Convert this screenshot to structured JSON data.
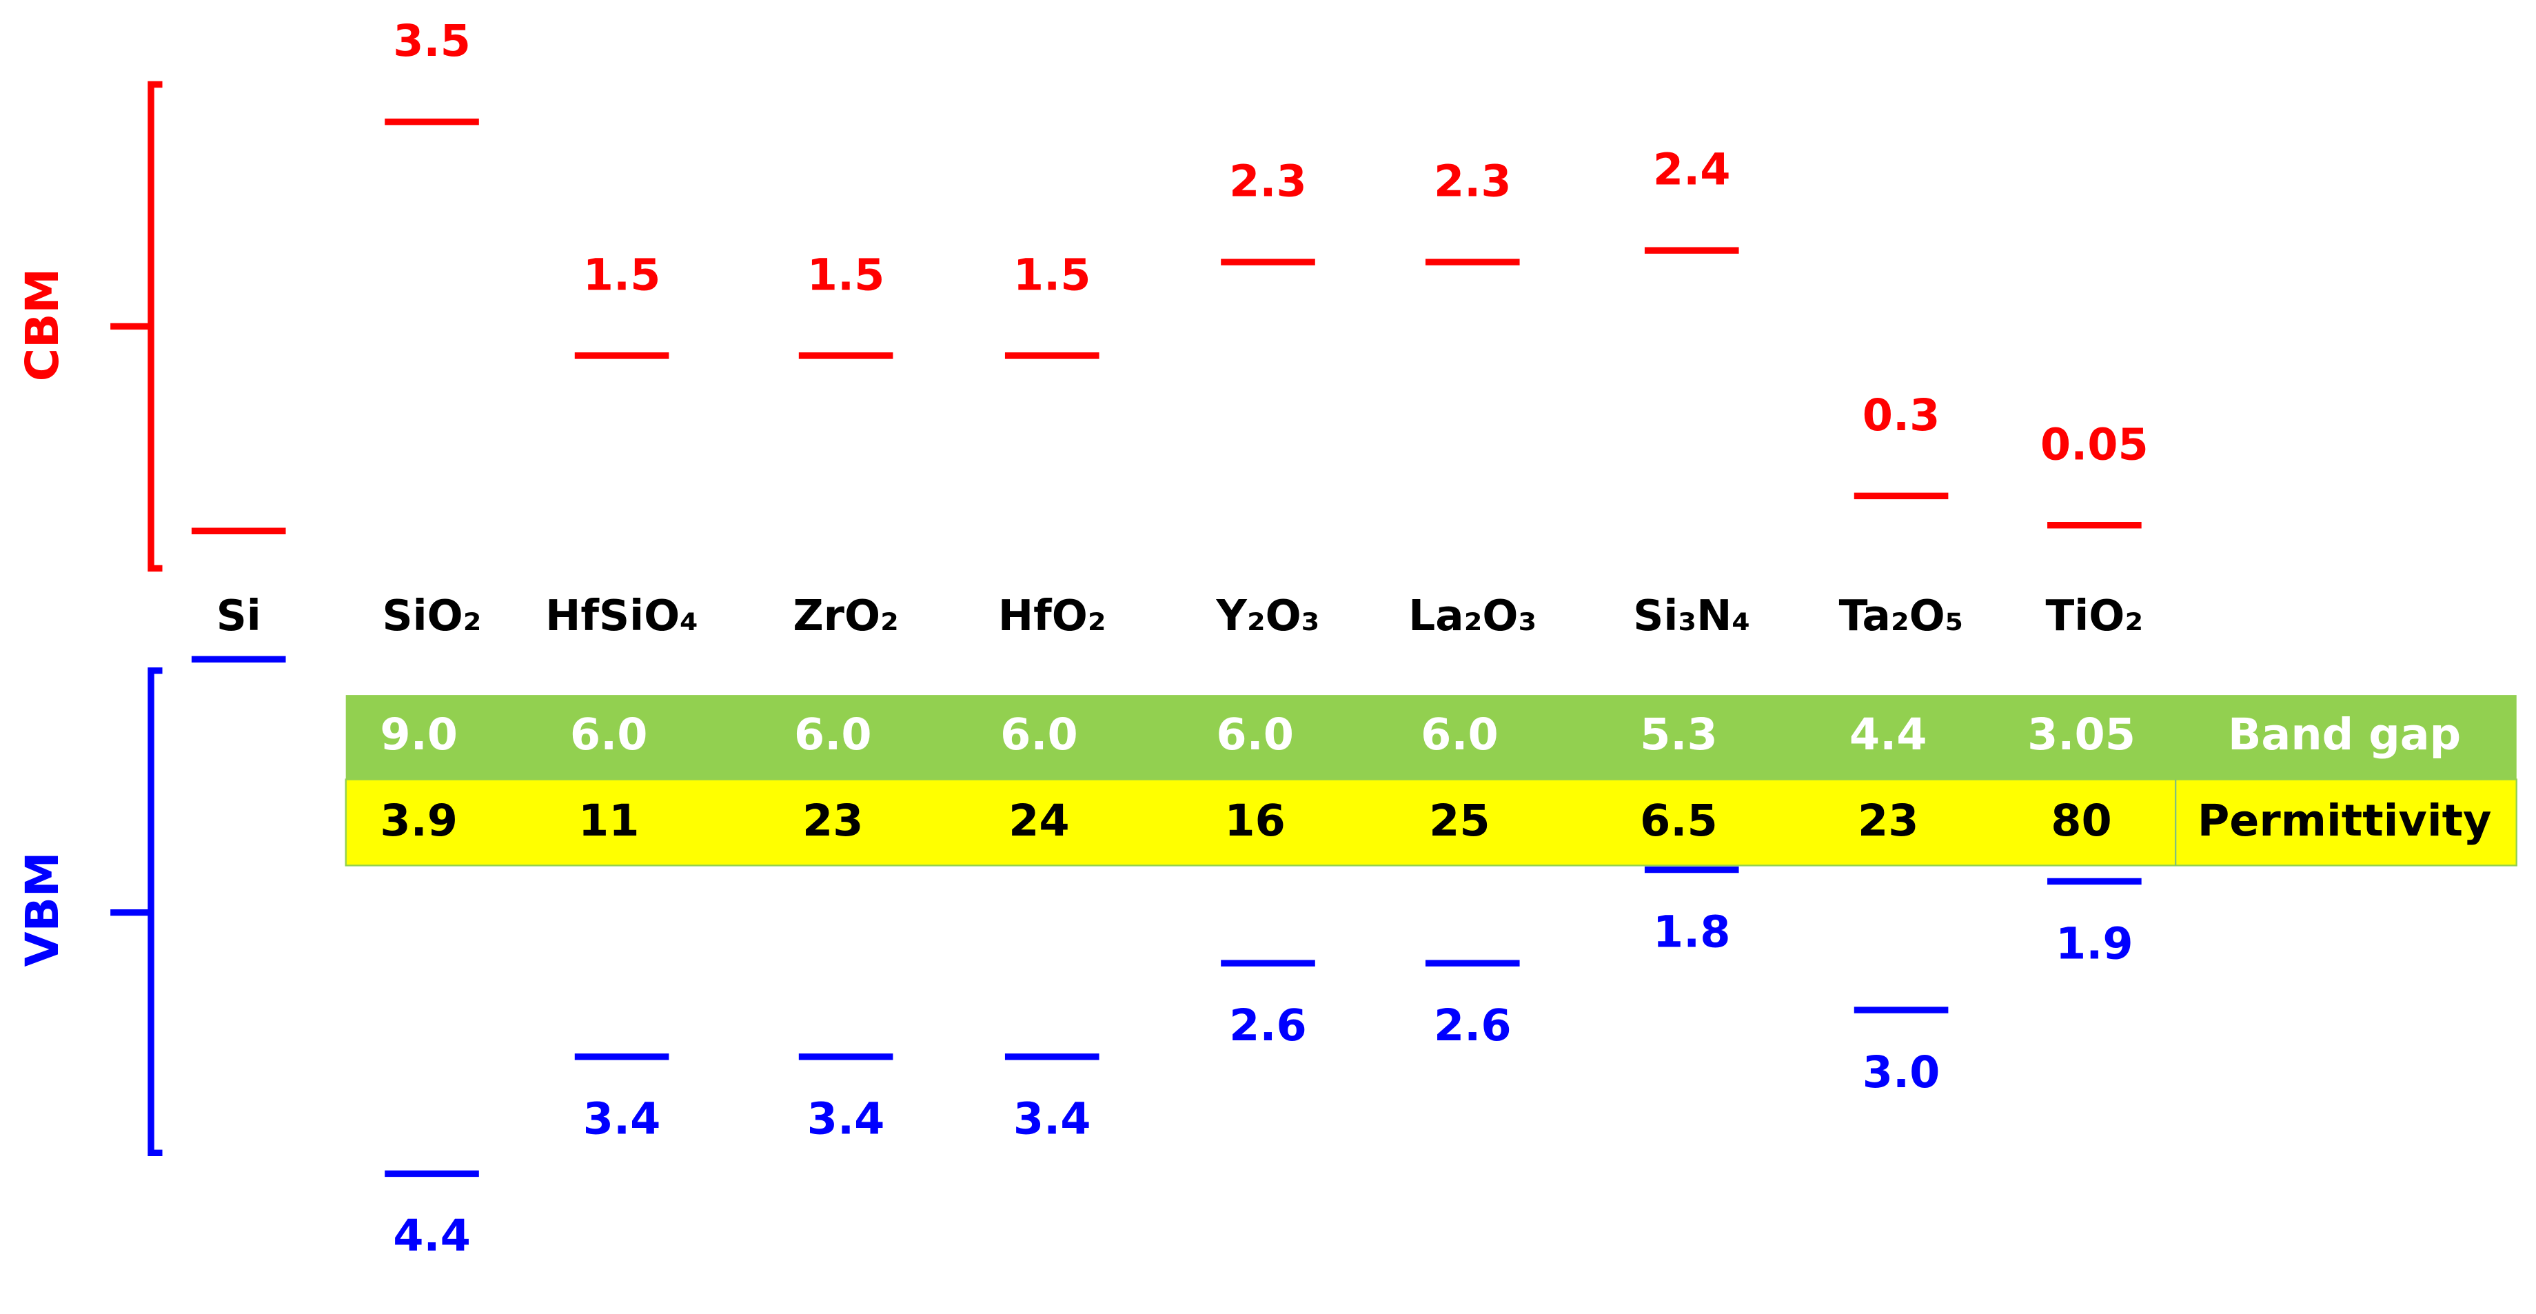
{
  "materials": [
    "Si",
    "SiO₂",
    "HfSiO₄",
    "ZrO₂",
    "HfO₂",
    "Y₂O₃",
    "La₂O₃",
    "Si₃N₄",
    "Ta₂O₅",
    "TiO₂"
  ],
  "cbm_label": "CBM",
  "vbm_label": "VBM",
  "cbm_offsets": {
    "values": [
      3.5,
      1.5,
      1.5,
      1.5,
      2.3,
      2.3,
      2.4,
      0.3,
      0.05
    ],
    "value_labels": [
      "3.5",
      "1.5",
      "1.5",
      "1.5",
      "2.3",
      "2.3",
      "2.4",
      "0.3",
      "0.05"
    ]
  },
  "vbm_offsets": {
    "values": [
      4.4,
      3.4,
      3.4,
      3.4,
      2.6,
      2.6,
      1.8,
      3.0,
      1.9
    ],
    "value_labels": [
      "4.4",
      "3.4",
      "3.4",
      "3.4",
      "2.6",
      "2.6",
      "1.8",
      "3.0",
      "1.9"
    ]
  },
  "table": {
    "rows": [
      {
        "label": "Band gap",
        "values": [
          "9.0",
          "6.0",
          "6.0",
          "6.0",
          "6.0",
          "6.0",
          "5.3",
          "4.4",
          "3.05"
        ]
      },
      {
        "label": "Permittivity",
        "values": [
          "3.9",
          "11",
          "23",
          "24",
          "16",
          "25",
          "6.5",
          "23",
          "80"
        ]
      }
    ]
  },
  "colors": {
    "cbm": "#ff0000",
    "vbm": "#0000ff"
  }
}
